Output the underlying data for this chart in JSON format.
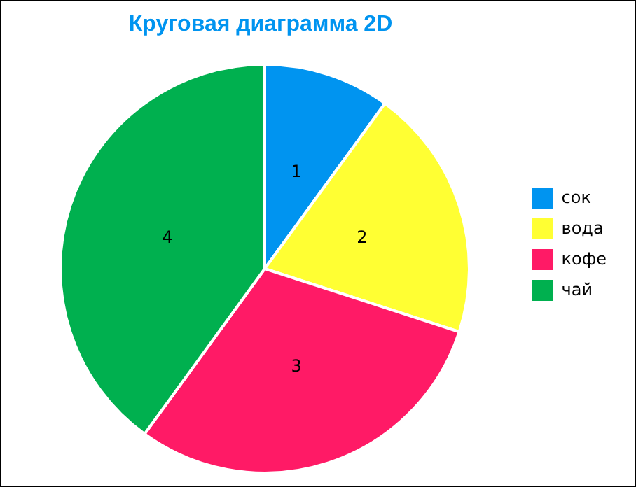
{
  "chart_data": {
    "type": "pie",
    "title": "Круговая диаграмма 2D",
    "categories": [
      "сок",
      "вода",
      "кофе",
      "чай"
    ],
    "values": [
      1,
      2,
      3,
      4
    ],
    "colors": [
      "#0094f0",
      "#ffff33",
      "#ff1a66",
      "#00b04f"
    ],
    "data_labels": true,
    "legend": "right"
  }
}
